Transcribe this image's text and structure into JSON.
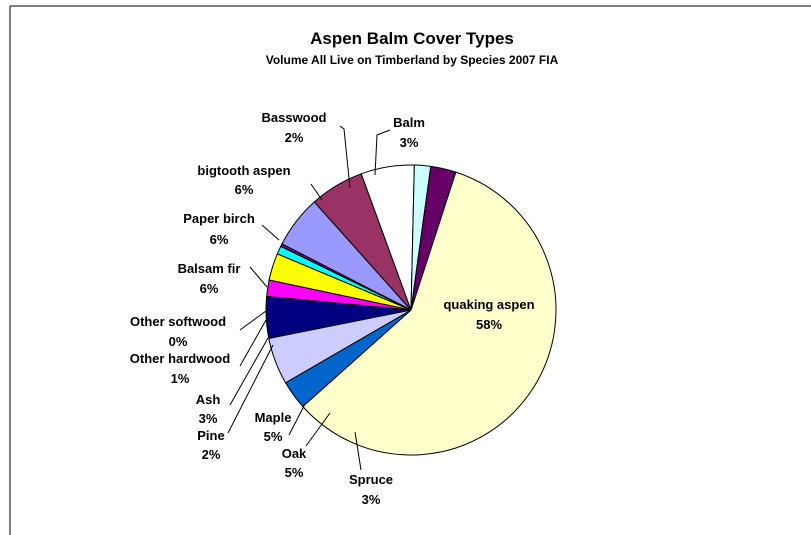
{
  "chart_data": {
    "type": "pie",
    "title": "Aspen Balm Cover Types",
    "subtitle": "Volume All Live on Timberland by Species 2007 FIA",
    "slices": [
      {
        "label": "quaking aspen",
        "pct_label": "58%",
        "value": 58.0,
        "color": "#FFFFCC"
      },
      {
        "label": "Spruce",
        "pct_label": "3%",
        "value": 3.2,
        "color": "#0066CC"
      },
      {
        "label": "Oak",
        "pct_label": "5%",
        "value": 5.2,
        "color": "#CCCCFF"
      },
      {
        "label": "Maple",
        "pct_label": "5%",
        "value": 4.6,
        "color": "#000080"
      },
      {
        "label": "Pine",
        "pct_label": "2%",
        "value": 1.8,
        "color": "#FF00FF"
      },
      {
        "label": "Ash",
        "pct_label": "3%",
        "value": 3.0,
        "color": "#FFFF00"
      },
      {
        "label": "Other hardwood",
        "pct_label": "1%",
        "value": 0.9,
        "color": "#00FFFF"
      },
      {
        "label": "Other softwood",
        "pct_label": "0%",
        "value": 0.3,
        "color": "#800080"
      },
      {
        "label": "Balsam fir",
        "pct_label": "6%",
        "value": 5.8,
        "color": "#9999FF"
      },
      {
        "label": "Paper birch",
        "pct_label": "6%",
        "value": 6.0,
        "color": "#993366"
      },
      {
        "label": "bigtooth aspen",
        "pct_label": "6%",
        "value": 5.9,
        "color": "#FFFFFF"
      },
      {
        "label": "Basswood",
        "pct_label": "2%",
        "value": 1.8,
        "color": "#CCFFFF"
      },
      {
        "label": "Balm",
        "pct_label": "3%",
        "value": 2.8,
        "color": "#660066"
      }
    ]
  }
}
